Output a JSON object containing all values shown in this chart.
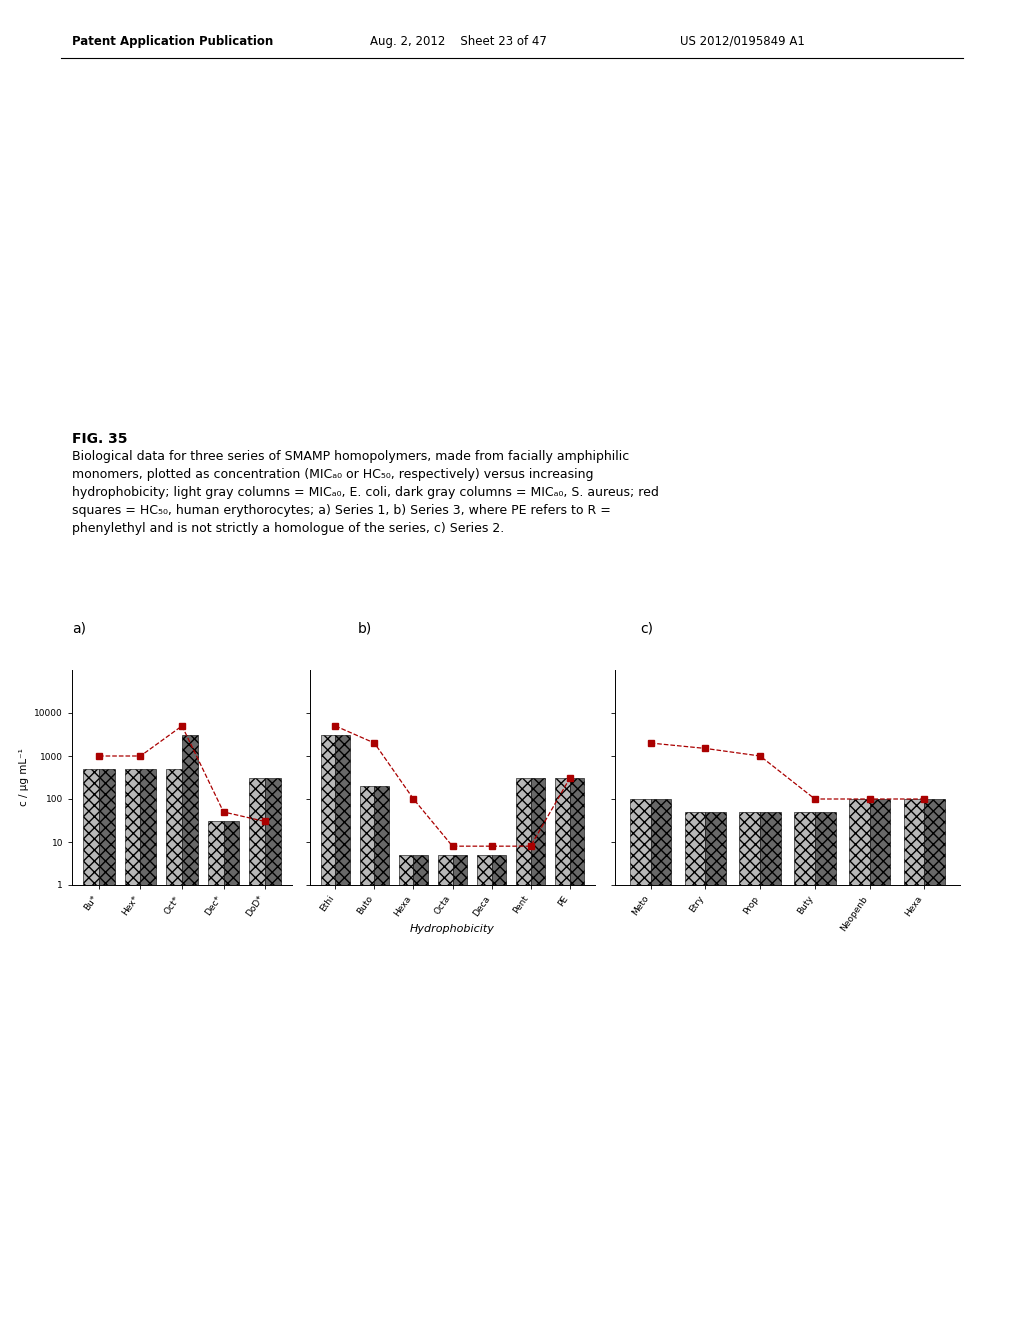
{
  "header_left": "Patent Application Publication",
  "header_mid": "Aug. 2, 2012    Sheet 23 of 47",
  "header_right": "US 2012/0195849 A1",
  "fig_label": "FIG. 35",
  "caption_lines": [
    "Biological data for three series of SMAMP homopolymers, made from facially amphiphilic",
    "monomers, plotted as concentration (MICₐ₀ or HC₅₀, respectively) versus increasing",
    "hydrophobicity; light gray columns = MICₐ₀, E. coli, dark gray columns = MICₐ₀, S. aureus; red",
    "squares = HC₅₀, human erythorocytes; a) Series 1, b) Series 3, where PE refers to R =",
    "phenylethyl and is not strictly a homologue of the series, c) Series 2."
  ],
  "panel_labels": [
    "a)",
    "b)",
    "c)"
  ],
  "xlabel_b": "Hydrophobicity",
  "ylabel": "c / μg mL⁻¹",
  "series_a": {
    "categories": [
      "Bu*",
      "Hex*",
      "Oct*",
      "Dec*",
      "DoD*"
    ],
    "light_gray": [
      500,
      500,
      500,
      30,
      300
    ],
    "dark_gray": [
      500,
      500,
      3000,
      30,
      300
    ],
    "red_line": [
      1000,
      1000,
      5000,
      50,
      30
    ]
  },
  "series_b": {
    "categories": [
      "Ethi",
      "Buto",
      "Hexa",
      "Octa",
      "Deca",
      "Pent",
      "PE"
    ],
    "light_gray": [
      3000,
      200,
      5,
      5,
      5,
      300,
      300
    ],
    "dark_gray": [
      3000,
      200,
      5,
      5,
      5,
      300,
      300
    ],
    "red_line": [
      5000,
      2000,
      100,
      8,
      8,
      8,
      300
    ]
  },
  "series_c": {
    "categories": [
      "Meto",
      "Etry",
      "Prop",
      "Buty",
      "Neopenb",
      "Hexa"
    ],
    "light_gray": [
      100,
      50,
      50,
      50,
      100,
      100
    ],
    "dark_gray": [
      100,
      50,
      50,
      50,
      100,
      100
    ],
    "red_line": [
      2000,
      1500,
      1000,
      100,
      100,
      100
    ]
  },
  "light_gray_color": "#b8b8b8",
  "dark_gray_color": "#686868",
  "red_color": "#aa0000",
  "bg_color": "#ffffff",
  "bar_hatch": "xxx"
}
